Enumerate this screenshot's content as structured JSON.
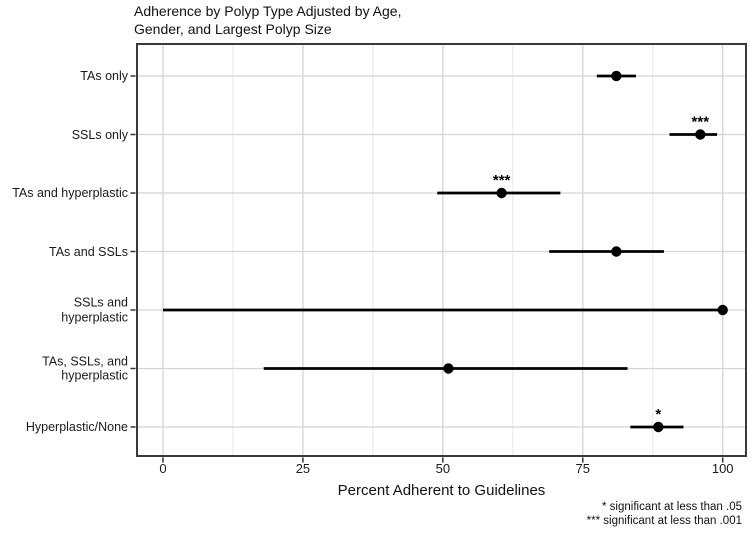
{
  "chart_data": {
    "type": "scatter",
    "subtype": "forest-dot-ci",
    "title_lines": [
      "Adherence by Polyp Type Adjusted by Age,",
      "Gender, and Largest Polyp Size"
    ],
    "xlabel": "Percent Adherent to Guidelines",
    "ylabel": "",
    "xlim": [
      0,
      100
    ],
    "x_ticks": [
      0,
      25,
      50,
      75,
      100
    ],
    "x_minor_ticks": [
      12.5,
      37.5,
      62.5,
      87.5
    ],
    "grid": "vertical major+minor, horizontal major per category",
    "legend": "none",
    "rows": [
      {
        "category": "TAs only",
        "estimate": 81,
        "ci_low": 77.5,
        "ci_high": 84.5,
        "significance": ""
      },
      {
        "category": "SSLs only",
        "estimate": 96,
        "ci_low": 90.5,
        "ci_high": 99,
        "significance": "***"
      },
      {
        "category": "TAs and hyperplastic",
        "estimate": 60.5,
        "ci_low": 49,
        "ci_high": 71,
        "significance": "***"
      },
      {
        "category": "TAs and SSLs",
        "estimate": 81,
        "ci_low": 69,
        "ci_high": 89.5,
        "significance": ""
      },
      {
        "category": "SSLs and\nhyperplastic",
        "estimate": 100,
        "ci_low": 0,
        "ci_high": 100,
        "significance": ""
      },
      {
        "category": "TAs, SSLs, and\nhyperplastic",
        "estimate": 51,
        "ci_low": 18,
        "ci_high": 83,
        "significance": ""
      },
      {
        "category": "Hyperplastic/None",
        "estimate": 88.5,
        "ci_low": 83.5,
        "ci_high": 93,
        "significance": "*"
      }
    ],
    "footnotes": [
      "* significant at less than .05",
      "*** significant at less than .001"
    ],
    "colors": {
      "point": "#000000",
      "ci_line": "#000000",
      "grid_major": "#d4d4d4",
      "grid_minor": "#e7e7e7",
      "panel_border": "#3a3a3a",
      "tick": "#333333",
      "text": "#1a1a1a"
    }
  }
}
